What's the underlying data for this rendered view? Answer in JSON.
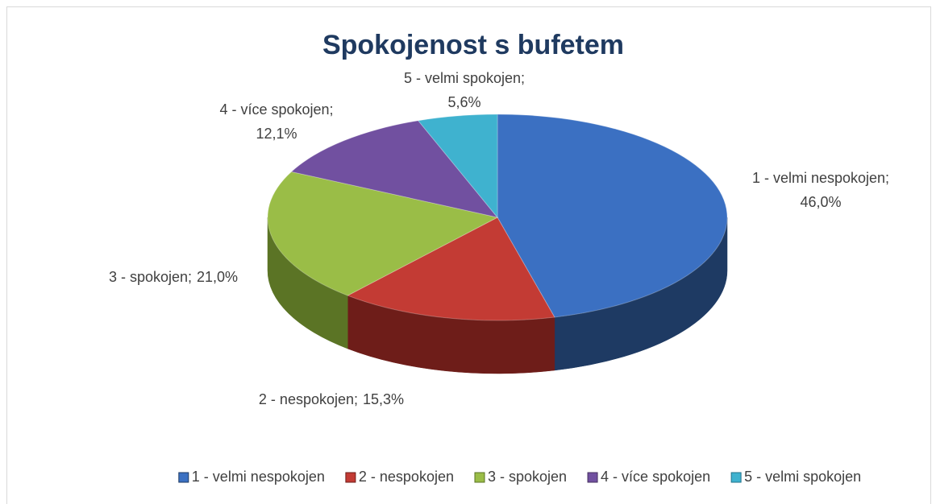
{
  "chart_data": {
    "type": "pie",
    "title": "Spokojenost s bufetem",
    "categories": [
      "1 - velmi nespokojen",
      "2 - nespokojen",
      "3 - spokojen",
      "4 - více spokojen",
      "5 - velmi spokojen"
    ],
    "data_label_names": [
      "1 - velmi nespokojen;",
      "2 - nespokojen;",
      "3 - spokojen;",
      "4 - více spokojen;",
      "5 - velmi spokojen;"
    ],
    "values": [
      46.0,
      15.3,
      21.0,
      12.1,
      5.6
    ],
    "value_labels": [
      "46,0%",
      "15,3%",
      "21,0%",
      "12,1%",
      "5,6%"
    ],
    "colors": [
      "#3b70c2",
      "#c33b34",
      "#9abd47",
      "#7150a0",
      "#3fb2cf"
    ],
    "side_colors": [
      "#1e3a63",
      "#6e1d19",
      "#5b7425",
      "#46305f",
      "#22728a"
    ],
    "legend": "bottom"
  }
}
